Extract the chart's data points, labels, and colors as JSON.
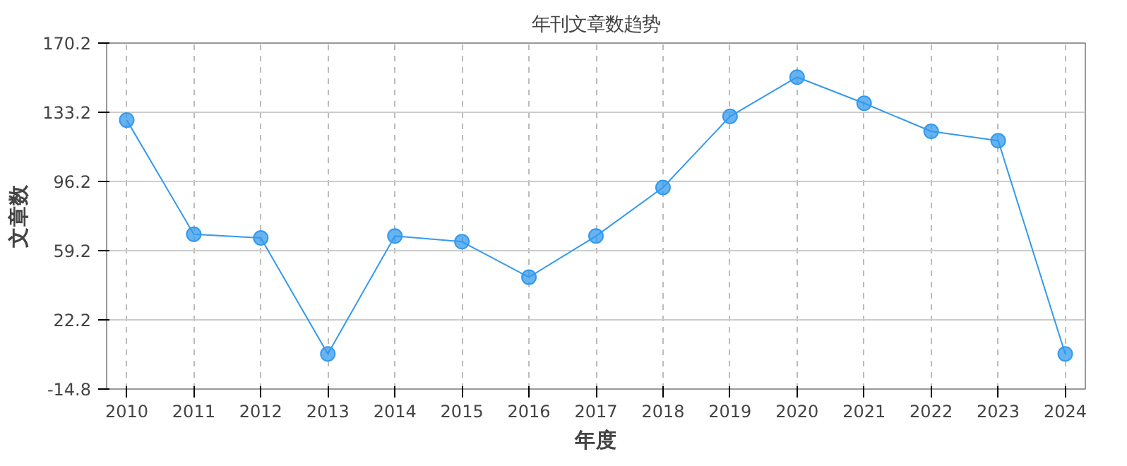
{
  "chart_data": {
    "type": "line",
    "title": "年刊文章数趋势",
    "xlabel": "年度",
    "ylabel": "文章数",
    "categories": [
      "2010",
      "2011",
      "2012",
      "2013",
      "2014",
      "2015",
      "2016",
      "2017",
      "2018",
      "2019",
      "2020",
      "2021",
      "2022",
      "2023",
      "2024"
    ],
    "series": [
      {
        "color": "#3399ee",
        "values": [
          129,
          68,
          66,
          4,
          67,
          64,
          45,
          67,
          93,
          131,
          152,
          138,
          123,
          118,
          4
        ]
      }
    ],
    "ylim": [
      -14.8,
      170.2
    ],
    "yticks": [
      -14.8,
      22.2,
      59.2,
      96.2,
      133.2,
      170.2
    ],
    "grid": true,
    "marker": "circle",
    "line_style": "solid"
  }
}
